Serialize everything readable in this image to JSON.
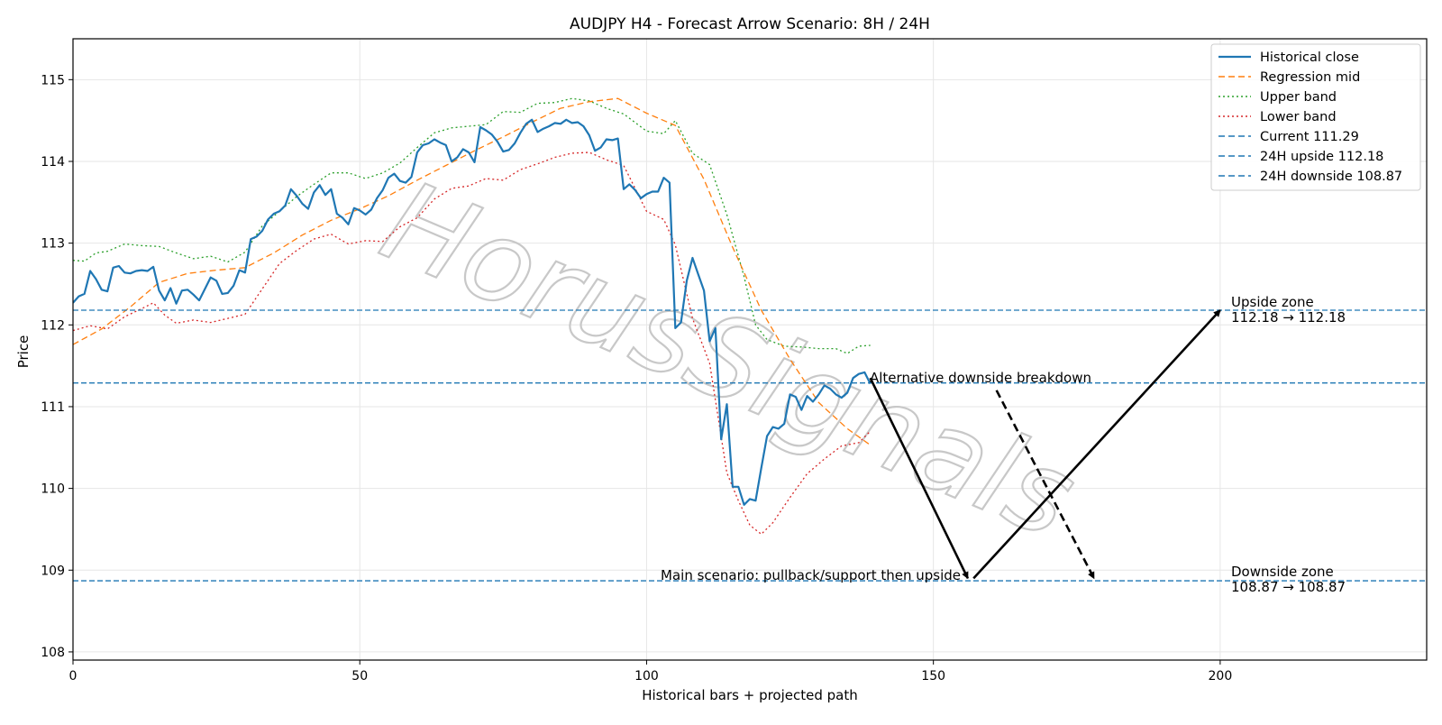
{
  "chart_data": {
    "type": "line",
    "title": "AUDJPY H4 - Forecast Arrow Scenario: 8H / 24H",
    "xlabel": "Historical bars + projected path",
    "ylabel": "Price",
    "xlim": [
      0,
      236
    ],
    "ylim": [
      107.9,
      115.5
    ],
    "xticks": [
      0,
      50,
      100,
      150,
      200
    ],
    "yticks": [
      108,
      109,
      110,
      111,
      112,
      113,
      114,
      115
    ],
    "grid": true,
    "legend_position": "top-right",
    "watermark": "HorusSignals",
    "colors": {
      "historical": "#1f77b4",
      "regression": "#ff7f0e",
      "upper": "#2ca02c",
      "lower": "#d62728",
      "hline": "#1f77b4",
      "arrow": "#000000"
    },
    "legend": [
      {
        "label": "Historical close",
        "color": "#1f77b4",
        "style": "solid"
      },
      {
        "label": "Regression mid",
        "color": "#ff7f0e",
        "style": "dashed"
      },
      {
        "label": "Upper band",
        "color": "#2ca02c",
        "style": "dotted"
      },
      {
        "label": "Lower band",
        "color": "#d62728",
        "style": "dotted"
      },
      {
        "label": "Current 111.29",
        "color": "#1f77b4",
        "style": "dashed"
      },
      {
        "label": "24H upside 112.18",
        "color": "#1f77b4",
        "style": "dashed"
      },
      {
        "label": "24H downside 108.87",
        "color": "#1f77b4",
        "style": "dashed"
      }
    ],
    "hlines": [
      {
        "name": "Current",
        "value": 111.29
      },
      {
        "name": "24H upside",
        "value": 112.18
      },
      {
        "name": "24H downside",
        "value": 108.87
      }
    ],
    "annotations": {
      "upside_title": "Upside zone",
      "upside_range": "112.18 → 112.18",
      "downside_title": "Downside zone",
      "downside_range": "108.87 → 108.87",
      "alt_label": "Alternative downside breakdown",
      "main_label": "Main scenario: pullback/support then upside"
    },
    "arrows": {
      "main_leg1": {
        "from": [
          139,
          111.35
        ],
        "to": [
          156,
          108.9
        ]
      },
      "main_leg2": {
        "from": [
          157,
          108.9
        ],
        "to": [
          200,
          112.18
        ]
      },
      "alternative": {
        "from": [
          161,
          111.2
        ],
        "to": [
          178,
          108.9
        ]
      }
    },
    "series": [
      {
        "name": "Historical close",
        "x": [
          0,
          1,
          2,
          3,
          4,
          5,
          6,
          7,
          8,
          9,
          10,
          11,
          12,
          13,
          14,
          15,
          16,
          17,
          18,
          19,
          20,
          21,
          22,
          23,
          24,
          25,
          26,
          27,
          28,
          29,
          30,
          31,
          32,
          33,
          34,
          35,
          36,
          37,
          38,
          39,
          40,
          41,
          42,
          43,
          44,
          45,
          46,
          47,
          48,
          49,
          50,
          51,
          52,
          53,
          54,
          55,
          56,
          57,
          58,
          59,
          60,
          61,
          62,
          63,
          64,
          65,
          66,
          67,
          68,
          69,
          70,
          71,
          72,
          73,
          74,
          75,
          76,
          77,
          78,
          79,
          80,
          81,
          82,
          83,
          84,
          85,
          86,
          87,
          88,
          89,
          90,
          91,
          92,
          93,
          94,
          95,
          96,
          97,
          98,
          99,
          100,
          101,
          102,
          103,
          104,
          105,
          106,
          107,
          108,
          109,
          110,
          111,
          112,
          113,
          114,
          115,
          116,
          117,
          118,
          119,
          120,
          121,
          122,
          123,
          124,
          125,
          126,
          127,
          128,
          129,
          130,
          131,
          132,
          133,
          134,
          135,
          136,
          137,
          138,
          139
        ],
        "y": [
          112.27,
          112.35,
          112.38,
          112.66,
          112.56,
          112.43,
          112.41,
          112.7,
          112.72,
          112.64,
          112.63,
          112.66,
          112.67,
          112.66,
          112.71,
          112.42,
          112.3,
          112.45,
          112.26,
          112.42,
          112.43,
          112.37,
          112.3,
          112.44,
          112.58,
          112.54,
          112.38,
          112.39,
          112.48,
          112.67,
          112.64,
          113.05,
          113.08,
          113.15,
          113.29,
          113.36,
          113.39,
          113.46,
          113.66,
          113.58,
          113.48,
          113.42,
          113.62,
          113.71,
          113.59,
          113.66,
          113.36,
          113.31,
          113.23,
          113.43,
          113.4,
          113.35,
          113.41,
          113.55,
          113.65,
          113.8,
          113.85,
          113.76,
          113.74,
          113.81,
          114.11,
          114.2,
          114.22,
          114.27,
          114.23,
          114.2,
          114.0,
          114.05,
          114.15,
          114.11,
          113.99,
          114.42,
          114.38,
          114.33,
          114.24,
          114.12,
          114.14,
          114.22,
          114.35,
          114.46,
          114.51,
          114.36,
          114.4,
          114.43,
          114.47,
          114.46,
          114.51,
          114.47,
          114.48,
          114.43,
          114.32,
          114.13,
          114.17,
          114.27,
          114.26,
          114.28,
          113.66,
          113.72,
          113.65,
          113.55,
          113.6,
          113.63,
          113.63,
          113.8,
          113.74,
          111.96,
          112.03,
          112.54,
          112.82,
          112.62,
          112.42,
          111.8,
          111.96,
          110.6,
          111.03,
          110.02,
          110.02,
          109.8,
          109.87,
          109.85,
          110.25,
          110.64,
          110.75,
          110.73,
          110.79,
          111.15,
          111.12,
          110.96,
          111.13,
          111.06,
          111.15,
          111.26,
          111.22,
          111.15,
          111.11,
          111.17,
          111.35,
          111.4,
          111.42,
          111.28
        ]
      },
      {
        "name": "Regression mid",
        "x": [
          0,
          5,
          10,
          15,
          20,
          25,
          30,
          35,
          40,
          45,
          50,
          55,
          60,
          65,
          70,
          75,
          80,
          85,
          90,
          95,
          100,
          105,
          110,
          115,
          120,
          125,
          130,
          135,
          139
        ],
        "y": [
          111.76,
          111.95,
          112.22,
          112.52,
          112.63,
          112.67,
          112.7,
          112.88,
          113.1,
          113.28,
          113.42,
          113.58,
          113.77,
          113.95,
          114.13,
          114.3,
          114.48,
          114.65,
          114.73,
          114.77,
          114.59,
          114.44,
          113.78,
          112.95,
          112.18,
          111.58,
          111.05,
          110.73,
          110.53
        ]
      },
      {
        "name": "Upper band",
        "x": [
          0,
          2,
          4,
          6,
          9,
          12,
          15,
          18,
          21,
          24,
          27,
          30,
          33,
          36,
          39,
          42,
          45,
          48,
          51,
          54,
          57,
          60,
          63,
          66,
          69,
          72,
          75,
          78,
          81,
          84,
          87,
          90,
          93,
          96,
          100,
          103,
          105,
          108,
          111,
          114,
          117,
          119,
          121,
          124,
          127,
          130,
          133,
          135,
          137,
          139
        ],
        "y": [
          112.79,
          112.78,
          112.88,
          112.9,
          112.99,
          112.97,
          112.96,
          112.88,
          112.81,
          112.84,
          112.77,
          112.89,
          113.21,
          113.39,
          113.57,
          113.72,
          113.86,
          113.86,
          113.79,
          113.86,
          113.98,
          114.17,
          114.35,
          114.41,
          114.43,
          114.45,
          114.61,
          114.6,
          114.71,
          114.72,
          114.77,
          114.74,
          114.65,
          114.58,
          114.37,
          114.34,
          114.5,
          114.1,
          113.96,
          113.35,
          112.59,
          112.0,
          111.82,
          111.74,
          111.73,
          111.71,
          111.71,
          111.65,
          111.74,
          111.75
        ]
      },
      {
        "name": "Lower band",
        "x": [
          0,
          3,
          6,
          9,
          12,
          14,
          16,
          18,
          21,
          24,
          27,
          30,
          33,
          36,
          39,
          42,
          45,
          48,
          51,
          54,
          57,
          60,
          63,
          66,
          69,
          72,
          75,
          78,
          81,
          84,
          87,
          90,
          93,
          96,
          100,
          103,
          105,
          108,
          111,
          114,
          116,
          118,
          120,
          122,
          125,
          128,
          131,
          134,
          137,
          139
        ],
        "y": [
          111.93,
          111.99,
          111.95,
          112.1,
          112.2,
          112.27,
          112.12,
          112.02,
          112.06,
          112.03,
          112.08,
          112.13,
          112.44,
          112.75,
          112.91,
          113.05,
          113.11,
          112.99,
          113.03,
          113.02,
          113.2,
          113.31,
          113.54,
          113.67,
          113.7,
          113.79,
          113.77,
          113.9,
          113.97,
          114.05,
          114.1,
          114.11,
          114.02,
          113.95,
          113.39,
          113.29,
          112.98,
          112.08,
          111.53,
          110.19,
          109.85,
          109.55,
          109.44,
          109.58,
          109.89,
          110.18,
          110.36,
          110.52,
          110.56,
          110.7
        ]
      }
    ]
  }
}
